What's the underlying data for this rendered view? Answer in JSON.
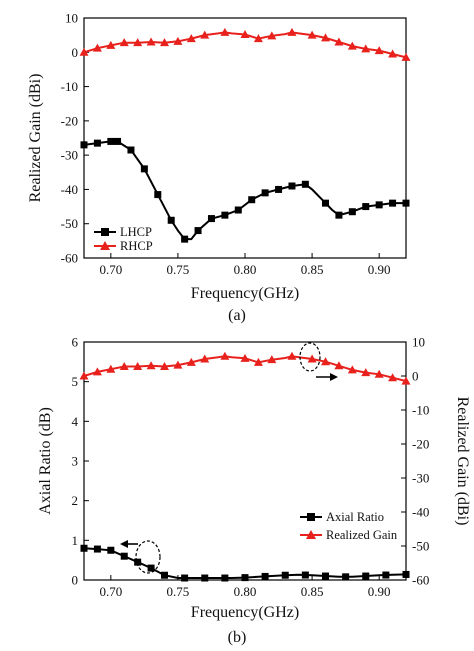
{
  "figure": {
    "caption_a": "(a)",
    "caption_b": "(b)"
  },
  "chart_data": [
    {
      "type": "line",
      "panel": "a",
      "xlabel": "Frequency(GHz)",
      "ylabel": "Realized Gain (dBi)",
      "xlim": [
        0.68,
        0.92
      ],
      "ylim": [
        -60,
        10
      ],
      "xticks": [
        0.7,
        0.75,
        0.8,
        0.85,
        0.9
      ],
      "xtick_labels": [
        "0.70",
        "0.75",
        "0.80",
        "0.85",
        "0.90"
      ],
      "yticks": [
        10,
        0,
        -10,
        -20,
        -30,
        -40,
        -50,
        -60
      ],
      "ytick_labels": [
        "10",
        "0",
        "-10",
        "-20",
        "-30",
        "-40",
        "-50",
        "-60"
      ],
      "legend_position": "bottom-left",
      "series": [
        {
          "name": "LHCP",
          "color": "#000000",
          "marker": "square",
          "x": [
            0.68,
            0.69,
            0.7,
            0.705,
            0.715,
            0.725,
            0.735,
            0.745,
            0.75,
            0.755,
            0.76,
            0.765,
            0.775,
            0.785,
            0.795,
            0.805,
            0.815,
            0.825,
            0.835,
            0.845,
            0.85,
            0.86,
            0.865,
            0.87,
            0.88,
            0.89,
            0.9,
            0.91,
            0.92
          ],
          "y": [
            -27,
            -26.5,
            -26,
            -26,
            -28.5,
            -34,
            -41.5,
            -49,
            -52,
            -54.5,
            -54.5,
            -52,
            -48.5,
            -47.5,
            -46,
            -43,
            -41,
            -40,
            -39,
            -38.5,
            -40,
            -44,
            -46,
            -47.5,
            -46.5,
            -45,
            -44.5,
            -44,
            -44
          ],
          "marker_x": [
            0.68,
            0.69,
            0.7,
            0.705,
            0.715,
            0.725,
            0.735,
            0.745,
            0.755,
            0.765,
            0.775,
            0.785,
            0.795,
            0.805,
            0.815,
            0.825,
            0.835,
            0.845,
            0.86,
            0.87,
            0.88,
            0.89,
            0.9,
            0.91,
            0.92
          ]
        },
        {
          "name": "RHCP",
          "color": "#e8211c",
          "marker": "triangle",
          "x": [
            0.68,
            0.69,
            0.7,
            0.71,
            0.72,
            0.73,
            0.74,
            0.75,
            0.76,
            0.77,
            0.78,
            0.785,
            0.79,
            0.8,
            0.81,
            0.82,
            0.83,
            0.835,
            0.84,
            0.85,
            0.86,
            0.87,
            0.88,
            0.89,
            0.9,
            0.91,
            0.92
          ],
          "y": [
            0,
            1.2,
            2,
            2.8,
            2.8,
            3,
            2.8,
            3.2,
            4,
            5,
            5.5,
            5.8,
            5.5,
            5.2,
            4,
            4.8,
            5.3,
            5.8,
            5.5,
            5,
            4.2,
            3,
            1.8,
            1,
            0.5,
            -0.5,
            -1.5
          ],
          "marker_x": [
            0.68,
            0.69,
            0.7,
            0.71,
            0.72,
            0.73,
            0.74,
            0.75,
            0.76,
            0.77,
            0.785,
            0.8,
            0.81,
            0.82,
            0.835,
            0.85,
            0.86,
            0.87,
            0.88,
            0.89,
            0.9,
            0.91,
            0.92
          ]
        }
      ]
    },
    {
      "type": "line",
      "panel": "b",
      "xlabel": "Frequency(GHz)",
      "ylabel": "Axial Ratio (dB)",
      "y2label": "Realized Gain (dBi)",
      "xlim": [
        0.68,
        0.92
      ],
      "ylim": [
        0,
        6
      ],
      "y2lim": [
        -60,
        10
      ],
      "xticks": [
        0.7,
        0.75,
        0.8,
        0.85,
        0.9
      ],
      "xtick_labels": [
        "0.70",
        "0.75",
        "0.80",
        "0.85",
        "0.90"
      ],
      "yticks": [
        0,
        1,
        2,
        3,
        4,
        5,
        6
      ],
      "ytick_labels": [
        "0",
        "1",
        "2",
        "3",
        "4",
        "5",
        "6"
      ],
      "y2ticks": [
        10,
        0,
        -10,
        -20,
        -30,
        -40,
        -50,
        -60
      ],
      "y2tick_labels": [
        "10",
        "0",
        "-10",
        "-20",
        "-30",
        "-40",
        "-50",
        "-60"
      ],
      "legend_position": "bottom-right",
      "series": [
        {
          "name": "Axial Ratio",
          "axis": "left",
          "color": "#000000",
          "marker": "square",
          "x": [
            0.68,
            0.69,
            0.7,
            0.71,
            0.72,
            0.73,
            0.74,
            0.75,
            0.76,
            0.77,
            0.78,
            0.79,
            0.8,
            0.81,
            0.82,
            0.83,
            0.84,
            0.85,
            0.86,
            0.87,
            0.88,
            0.89,
            0.9,
            0.91,
            0.92
          ],
          "y": [
            0.8,
            0.78,
            0.75,
            0.6,
            0.45,
            0.3,
            0.12,
            0.05,
            0.05,
            0.05,
            0.05,
            0.05,
            0.06,
            0.08,
            0.1,
            0.12,
            0.13,
            0.12,
            0.1,
            0.08,
            0.08,
            0.1,
            0.12,
            0.13,
            0.14
          ],
          "marker_x": [
            0.68,
            0.69,
            0.7,
            0.71,
            0.72,
            0.73,
            0.74,
            0.755,
            0.77,
            0.785,
            0.8,
            0.815,
            0.83,
            0.845,
            0.86,
            0.875,
            0.89,
            0.905,
            0.92
          ]
        },
        {
          "name": "Realized Gain",
          "axis": "right",
          "color": "#e8211c",
          "marker": "triangle",
          "x": [
            0.68,
            0.69,
            0.7,
            0.71,
            0.72,
            0.73,
            0.74,
            0.75,
            0.76,
            0.77,
            0.78,
            0.785,
            0.79,
            0.8,
            0.81,
            0.82,
            0.83,
            0.835,
            0.84,
            0.85,
            0.86,
            0.87,
            0.88,
            0.89,
            0.9,
            0.91,
            0.92
          ],
          "y": [
            0,
            1.2,
            2,
            2.8,
            2.8,
            3,
            2.8,
            3.2,
            4,
            5,
            5.5,
            5.8,
            5.5,
            5.2,
            4,
            4.8,
            5.3,
            5.8,
            5.5,
            5,
            4.2,
            3,
            1.8,
            1,
            0.5,
            -0.5,
            -1.5
          ],
          "marker_x": [
            0.68,
            0.69,
            0.7,
            0.71,
            0.72,
            0.73,
            0.74,
            0.75,
            0.76,
            0.77,
            0.785,
            0.8,
            0.81,
            0.82,
            0.835,
            0.85,
            0.86,
            0.87,
            0.88,
            0.89,
            0.9,
            0.91,
            0.92
          ]
        }
      ]
    }
  ]
}
